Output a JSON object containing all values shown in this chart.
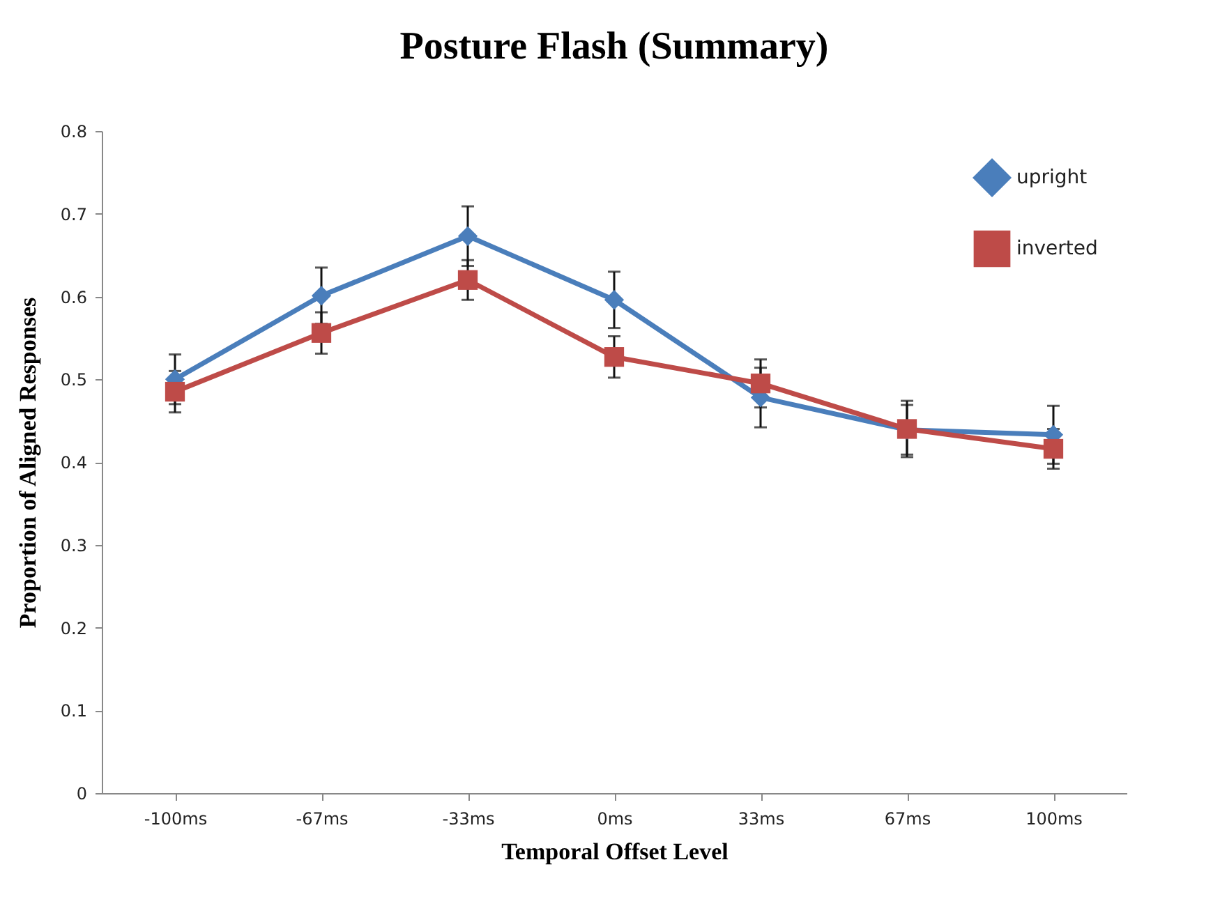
{
  "chart_data": {
    "type": "line",
    "title": "Posture Flash (Summary)",
    "xlabel": "Temporal Offset Level",
    "ylabel": "Proportion of Aligned Responses",
    "categories": [
      "-100ms",
      "-67ms",
      "-33ms",
      "0ms",
      "33ms",
      "67ms",
      "100ms"
    ],
    "series": [
      {
        "name": "upright",
        "color": "#4a7ebb",
        "marker": "diamond",
        "values": [
          0.5,
          0.601,
          0.673,
          0.596,
          0.478,
          0.439,
          0.433
        ],
        "errors": [
          0.03,
          0.034,
          0.036,
          0.034,
          0.036,
          0.03,
          0.035
        ]
      },
      {
        "name": "inverted",
        "color": "#be4b48",
        "marker": "square",
        "values": [
          0.485,
          0.556,
          0.62,
          0.527,
          0.495,
          0.44,
          0.416
        ],
        "errors": [
          0.025,
          0.025,
          0.024,
          0.025,
          0.029,
          0.034,
          0.024
        ]
      }
    ],
    "ylim": [
      0,
      0.8
    ],
    "yticks": [
      0,
      0.1,
      0.2,
      0.3,
      0.4,
      0.5,
      0.6,
      0.7,
      0.8
    ],
    "grid": false,
    "legend": "top right",
    "line_style": "solid"
  }
}
